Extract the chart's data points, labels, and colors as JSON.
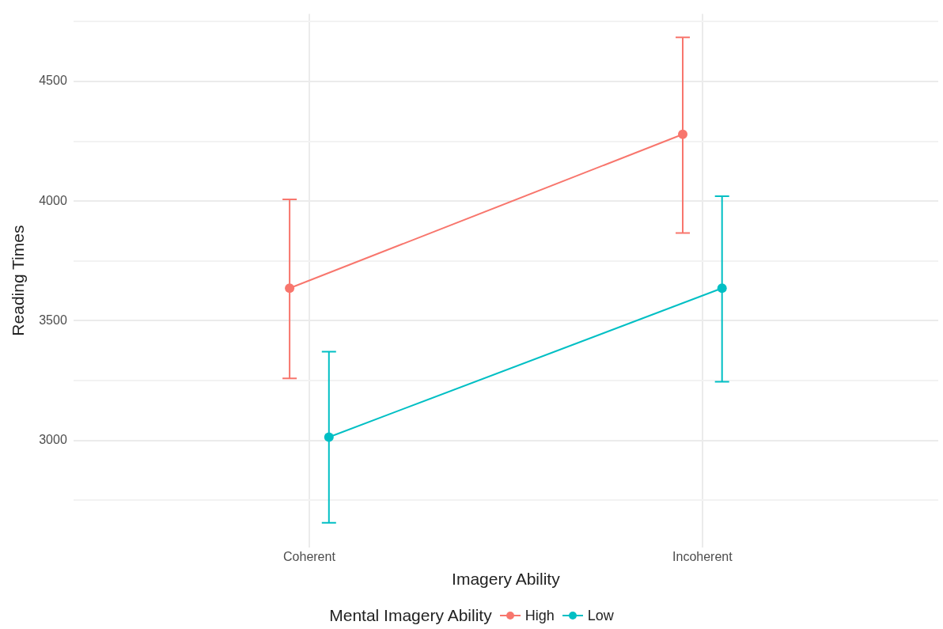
{
  "chart_data": {
    "type": "line",
    "xlabel": "Imagery Ability",
    "ylabel": "Reading Times",
    "legend_title": "Mental Imagery Ability",
    "categories": [
      "Coherent",
      "Incoherent"
    ],
    "series": [
      {
        "name": "High",
        "color": "#f8766d",
        "values": [
          3636,
          4279
        ],
        "errors": [
          [
            3259,
            4007
          ],
          [
            3867,
            4684
          ]
        ]
      },
      {
        "name": "Low",
        "color": "#00bfc4",
        "values": [
          3014,
          3636
        ],
        "errors": [
          [
            2656,
            3371
          ],
          [
            3245,
            4020
          ]
        ]
      }
    ],
    "ylim": [
      2554,
      4782
    ],
    "yticks": [
      {
        "value": 2750,
        "label": null
      },
      3000,
      {
        "value": 3250,
        "label": null
      },
      3500,
      {
        "value": 3750,
        "label": null
      },
      4000,
      {
        "value": 4250,
        "label": null
      },
      4500,
      {
        "value": 4750,
        "label": null
      }
    ],
    "grid": true,
    "legend": "bottom",
    "marker": "circle",
    "line_style": "solid"
  }
}
